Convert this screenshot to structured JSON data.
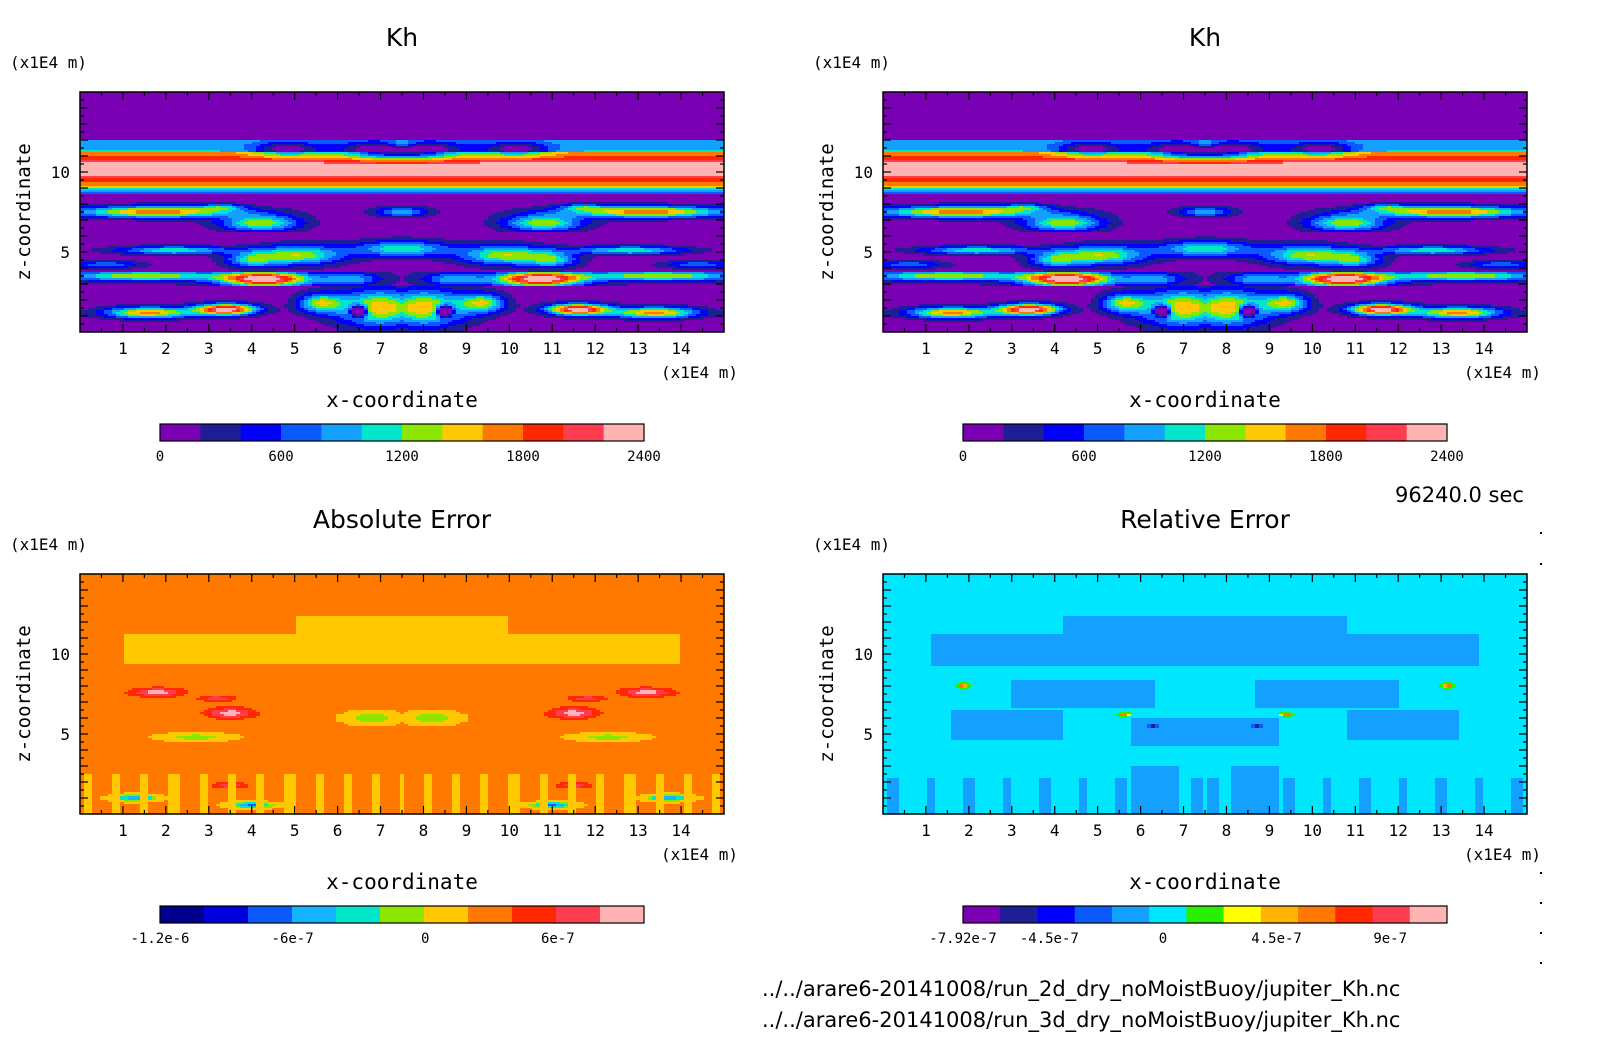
{
  "chart_data": [
    {
      "type": "heatmap",
      "id": "kh-2d",
      "title": "Kh",
      "xlabel": "x-coordinate",
      "ylabel": "z-coordinate",
      "x_unit": "(x1E4 m)",
      "y_unit": "(x1E4 m)",
      "xlim": [
        0,
        15
      ],
      "ylim": [
        0,
        15
      ],
      "xticks": [
        1,
        2,
        3,
        4,
        5,
        6,
        7,
        8,
        9,
        10,
        11,
        12,
        13,
        14
      ],
      "yticks": [
        5,
        10
      ],
      "pattern": "kh",
      "colorbar": {
        "colors": [
          "#7a00b4",
          "#1e1e96",
          "#0000ff",
          "#0a5aff",
          "#14a0ff",
          "#00e6c8",
          "#8ce600",
          "#ffc800",
          "#ff7800",
          "#ff2800",
          "#ff3c50",
          "#ffb4b4"
        ],
        "ticks": [
          {
            "value": 0,
            "label": "0"
          },
          {
            "value": 600,
            "label": "600"
          },
          {
            "value": 1200,
            "label": "1200"
          },
          {
            "value": 1800,
            "label": "1800"
          },
          {
            "value": 2400,
            "label": "2400"
          }
        ],
        "min": 0,
        "max": 2400
      }
    },
    {
      "type": "heatmap",
      "id": "kh-3d",
      "title": "Kh",
      "xlabel": "x-coordinate",
      "ylabel": "z-coordinate",
      "x_unit": "(x1E4 m)",
      "y_unit": "(x1E4 m)",
      "xlim": [
        0,
        15
      ],
      "ylim": [
        0,
        15
      ],
      "xticks": [
        1,
        2,
        3,
        4,
        5,
        6,
        7,
        8,
        9,
        10,
        11,
        12,
        13,
        14
      ],
      "yticks": [
        5,
        10
      ],
      "pattern": "kh",
      "colorbar": {
        "colors": [
          "#7a00b4",
          "#1e1e96",
          "#0000ff",
          "#0a5aff",
          "#14a0ff",
          "#00e6c8",
          "#8ce600",
          "#ffc800",
          "#ff7800",
          "#ff2800",
          "#ff3c50",
          "#ffb4b4"
        ],
        "ticks": [
          {
            "value": 0,
            "label": "0"
          },
          {
            "value": 600,
            "label": "600"
          },
          {
            "value": 1200,
            "label": "1200"
          },
          {
            "value": 1800,
            "label": "1800"
          },
          {
            "value": 2400,
            "label": "2400"
          }
        ],
        "min": 0,
        "max": 2400
      }
    },
    {
      "type": "heatmap",
      "id": "absolute-error",
      "title": "Absolute Error",
      "xlabel": "x-coordinate",
      "ylabel": "z-coordinate",
      "x_unit": "(x1E4 m)",
      "y_unit": "(x1E4 m)",
      "xlim": [
        0,
        15
      ],
      "ylim": [
        0,
        15
      ],
      "xticks": [
        1,
        2,
        3,
        4,
        5,
        6,
        7,
        8,
        9,
        10,
        11,
        12,
        13,
        14
      ],
      "yticks": [
        5,
        10
      ],
      "pattern": "abs",
      "colorbar": {
        "colors": [
          "#00008c",
          "#0000dc",
          "#0a5aff",
          "#14b4ff",
          "#00e6c8",
          "#8ce600",
          "#ffc800",
          "#ff7800",
          "#ff2800",
          "#ff3c50",
          "#ffb4b4"
        ],
        "ticks": [
          {
            "value": -1.2e-06,
            "label": "-1.2e-6"
          },
          {
            "value": -6e-07,
            "label": "-6e-7"
          },
          {
            "value": 0,
            "label": "0"
          },
          {
            "value": 6e-07,
            "label": "6e-7"
          }
        ],
        "min": -1.2e-06,
        "max": 9.9e-07
      }
    },
    {
      "type": "heatmap",
      "id": "relative-error",
      "title": "Relative Error",
      "xlabel": "x-coordinate",
      "ylabel": "z-coordinate",
      "x_unit": "(x1E4 m)",
      "y_unit": "(x1E4 m)",
      "xlim": [
        0,
        15
      ],
      "ylim": [
        0,
        15
      ],
      "xticks": [
        1,
        2,
        3,
        4,
        5,
        6,
        7,
        8,
        9,
        10,
        11,
        12,
        13,
        14
      ],
      "yticks": [
        5,
        10
      ],
      "pattern": "rel",
      "colorbar": {
        "colors": [
          "#7a00b4",
          "#1e1e96",
          "#0000ff",
          "#0a5aff",
          "#14a0ff",
          "#00e6ff",
          "#28f000",
          "#ffff00",
          "#ffb400",
          "#ff7800",
          "#ff2800",
          "#ff3c50",
          "#ffb4b4"
        ],
        "ticks": [
          {
            "value": -7.92e-07,
            "label": "-7.92e-7"
          },
          {
            "value": -4.5e-07,
            "label": "-4.5e-7"
          },
          {
            "value": 0,
            "label": "0"
          },
          {
            "value": 4.5e-07,
            "label": "4.5e-7"
          },
          {
            "value": 9e-07,
            "label": "9e-7"
          }
        ],
        "min": -7.92e-07,
        "max": 1.125e-06
      }
    }
  ],
  "footer": {
    "time": "96240.0 sec",
    "file1": "../../arare6-20141008/run_2d_dry_noMoistBuoy/jupiter_Kh.nc",
    "file2": "../../arare6-20141008/run_3d_dry_noMoistBuoy/jupiter_Kh.nc"
  }
}
